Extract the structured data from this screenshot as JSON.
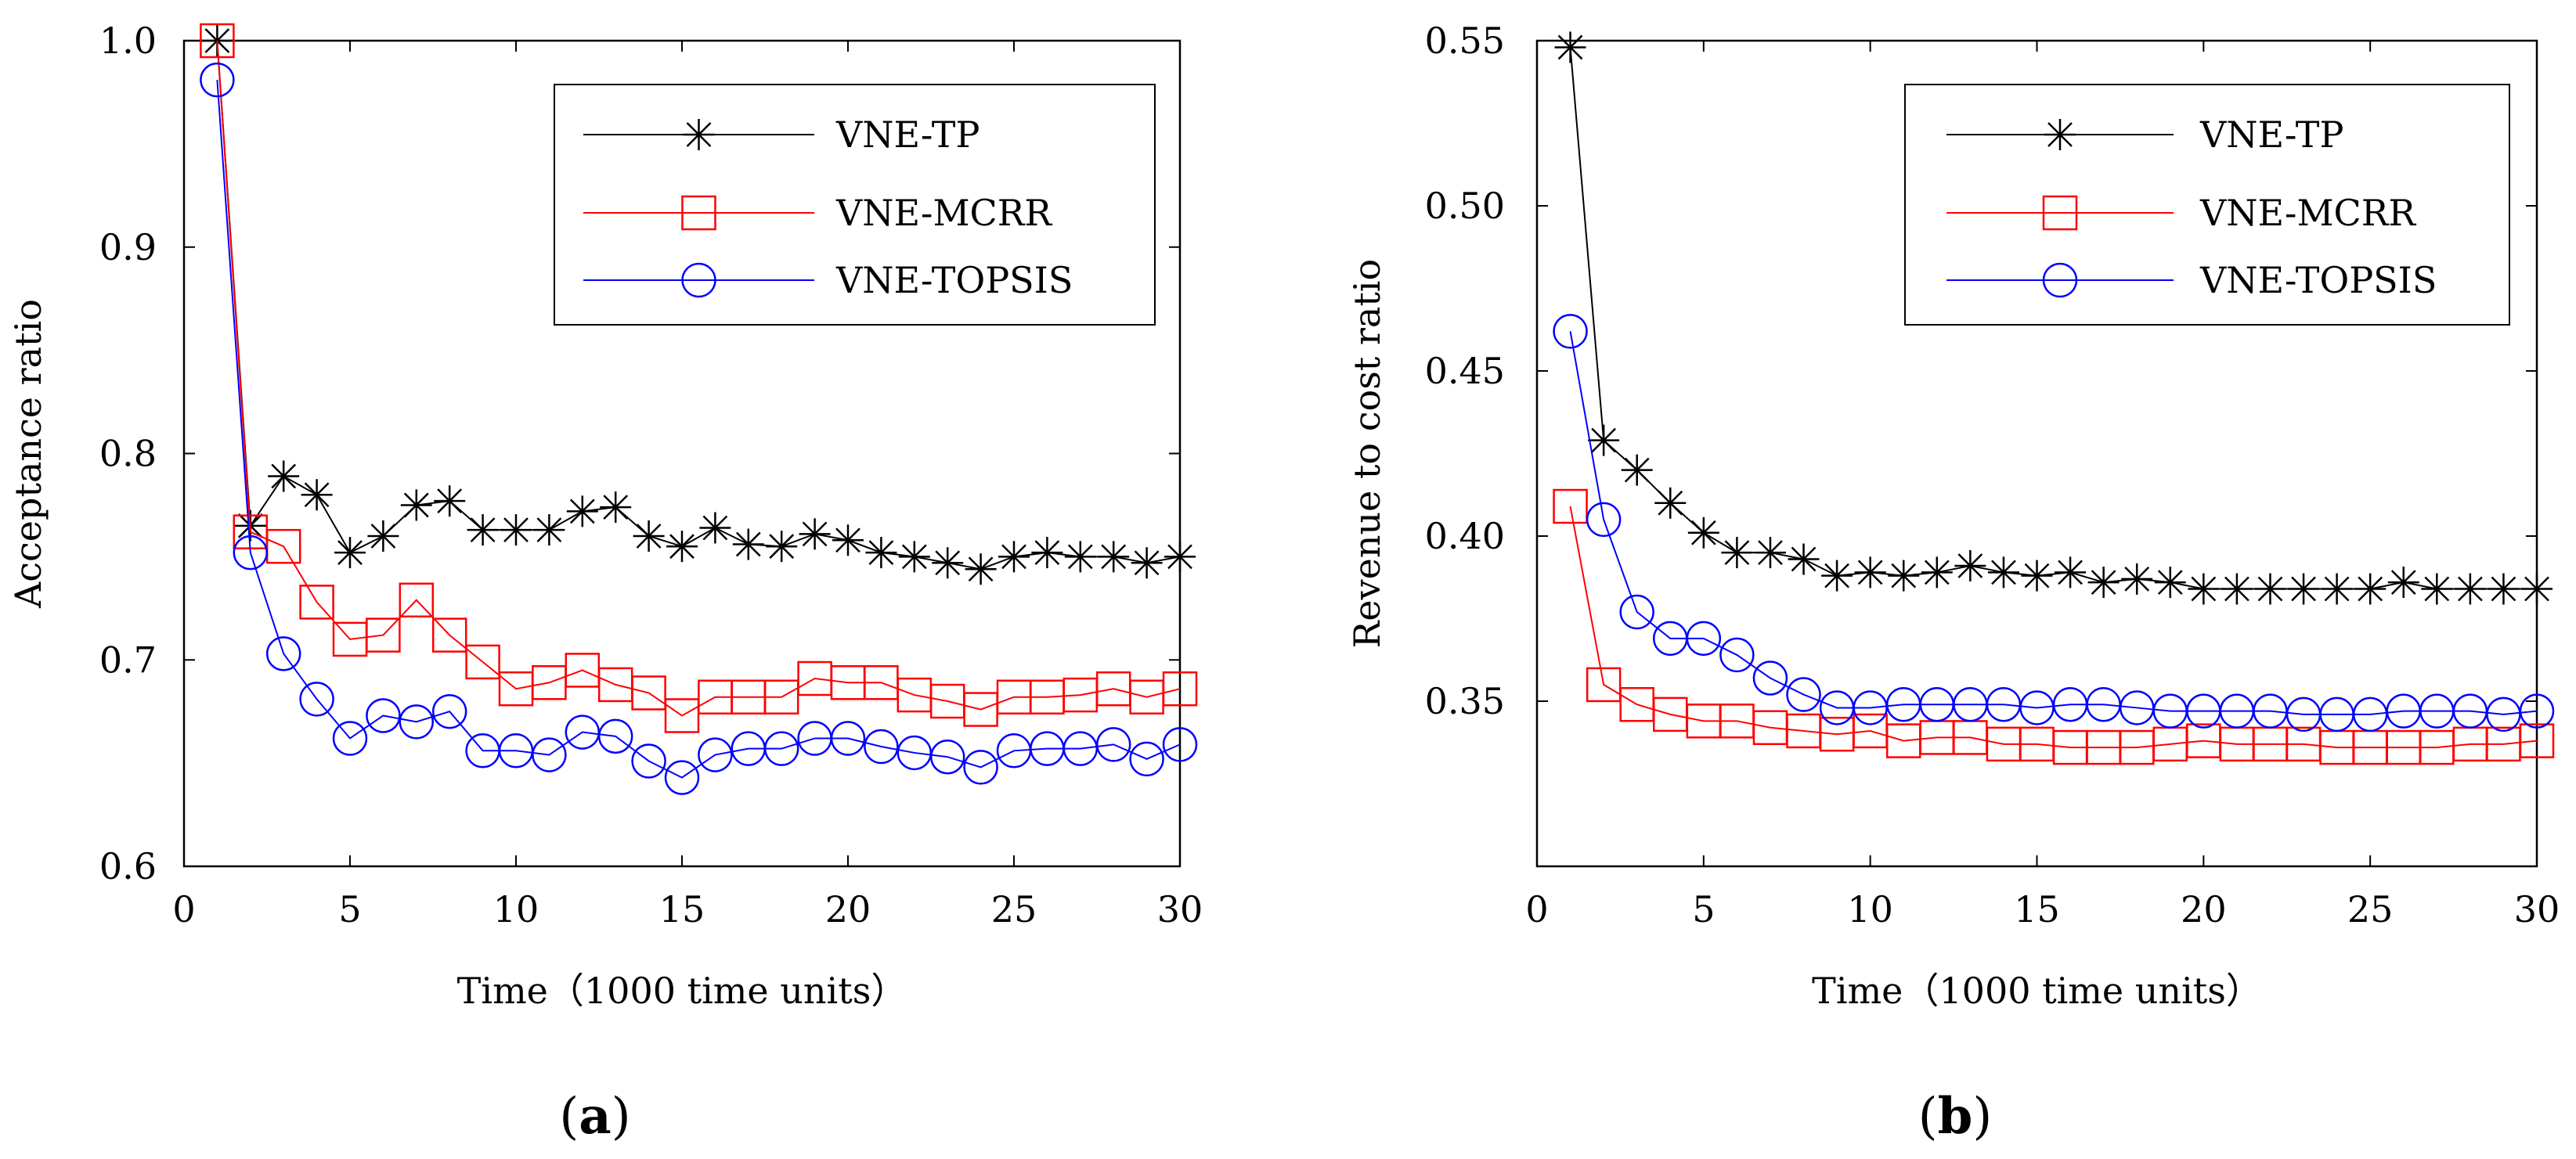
{
  "figure": {
    "panel_labels": [
      "(a)",
      "(b)"
    ],
    "panel_letters": [
      "a",
      "b"
    ],
    "colors": {
      "VNE-TP": "#000000",
      "VNE-MCRR": "#ff0000",
      "VNE-TOPSIS": "#0000ff"
    },
    "markers": {
      "VNE-TP": "star",
      "VNE-MCRR": "square",
      "VNE-TOPSIS": "circle"
    }
  },
  "chart_data": [
    {
      "type": "line",
      "panel": "(a)",
      "title": "",
      "xlabel": "Time（1000 time units）",
      "ylabel": "Acceptance ratio",
      "xlim": [
        0,
        30
      ],
      "ylim": [
        0.6,
        1.0
      ],
      "xticks": [
        0,
        5,
        10,
        15,
        20,
        25,
        30
      ],
      "yticks": [
        0.6,
        0.7,
        0.8,
        0.9,
        1.0
      ],
      "xtick_labels": [
        "0",
        "5",
        "10",
        "15",
        "20",
        "25",
        "30"
      ],
      "ytick_labels": [
        "0.6",
        "0.7",
        "0.8",
        "0.9",
        "1.0"
      ],
      "grid": false,
      "legend": "top-right",
      "x": [
        1,
        2,
        3,
        4,
        5,
        6,
        7,
        8,
        9,
        10,
        11,
        12,
        13,
        14,
        15,
        16,
        17,
        18,
        19,
        20,
        21,
        22,
        23,
        24,
        25,
        26,
        27,
        28,
        29,
        30
      ],
      "series": [
        {
          "name": "VNE-TP",
          "values": [
            1.0,
            0.765,
            0.789,
            0.78,
            0.752,
            0.76,
            0.775,
            0.777,
            0.763,
            0.763,
            0.763,
            0.772,
            0.774,
            0.76,
            0.755,
            0.764,
            0.756,
            0.755,
            0.761,
            0.758,
            0.752,
            0.75,
            0.747,
            0.744,
            0.75,
            0.752,
            0.75,
            0.75,
            0.747,
            0.75
          ]
        },
        {
          "name": "VNE-MCRR",
          "values": [
            1.0,
            0.762,
            0.755,
            0.728,
            0.71,
            0.712,
            0.729,
            0.712,
            0.699,
            0.686,
            0.689,
            0.695,
            0.688,
            0.684,
            0.673,
            0.682,
            0.682,
            0.682,
            0.691,
            0.689,
            0.689,
            0.683,
            0.68,
            0.676,
            0.682,
            0.682,
            0.683,
            0.686,
            0.682,
            0.686
          ]
        },
        {
          "name": "VNE-TOPSIS",
          "values": [
            0.981,
            0.752,
            0.703,
            0.681,
            0.662,
            0.673,
            0.67,
            0.675,
            0.656,
            0.656,
            0.654,
            0.665,
            0.663,
            0.651,
            0.643,
            0.654,
            0.657,
            0.657,
            0.662,
            0.662,
            0.658,
            0.655,
            0.653,
            0.648,
            0.656,
            0.657,
            0.657,
            0.659,
            0.652,
            0.659
          ]
        }
      ]
    },
    {
      "type": "line",
      "panel": "(b)",
      "title": "",
      "xlabel": "Time（1000 time units）",
      "ylabel": "Revenue to cost ratio",
      "xlim": [
        0,
        30
      ],
      "ylim": [
        0.3,
        0.55
      ],
      "xticks": [
        0,
        5,
        10,
        15,
        20,
        25,
        30
      ],
      "yticks": [
        0.35,
        0.4,
        0.45,
        0.5,
        0.55
      ],
      "xtick_labels": [
        "0",
        "5",
        "10",
        "15",
        "20",
        "25",
        "30"
      ],
      "ytick_labels": [
        "0.35",
        "0.40",
        "0.45",
        "0.50",
        "0.55"
      ],
      "grid": false,
      "legend": "top-right",
      "x": [
        1,
        2,
        3,
        4,
        5,
        6,
        7,
        8,
        9,
        10,
        11,
        12,
        13,
        14,
        15,
        16,
        17,
        18,
        19,
        20,
        21,
        22,
        23,
        24,
        25,
        26,
        27,
        28,
        29,
        30
      ],
      "series": [
        {
          "name": "VNE-TP",
          "values": [
            0.548,
            0.429,
            0.42,
            0.41,
            0.401,
            0.395,
            0.395,
            0.393,
            0.388,
            0.389,
            0.388,
            0.389,
            0.391,
            0.389,
            0.388,
            0.389,
            0.386,
            0.387,
            0.386,
            0.384,
            0.384,
            0.384,
            0.384,
            0.384,
            0.384,
            0.386,
            0.384,
            0.384,
            0.384,
            0.384
          ]
        },
        {
          "name": "VNE-MCRR",
          "values": [
            0.409,
            0.355,
            0.349,
            0.346,
            0.344,
            0.344,
            0.342,
            0.341,
            0.34,
            0.341,
            0.338,
            0.339,
            0.339,
            0.337,
            0.337,
            0.336,
            0.336,
            0.336,
            0.337,
            0.338,
            0.337,
            0.337,
            0.337,
            0.336,
            0.336,
            0.336,
            0.336,
            0.337,
            0.337,
            0.338
          ]
        },
        {
          "name": "VNE-TOPSIS",
          "values": [
            0.462,
            0.405,
            0.377,
            0.369,
            0.369,
            0.364,
            0.357,
            0.352,
            0.348,
            0.348,
            0.349,
            0.349,
            0.349,
            0.349,
            0.348,
            0.349,
            0.349,
            0.348,
            0.347,
            0.347,
            0.347,
            0.347,
            0.346,
            0.346,
            0.346,
            0.347,
            0.347,
            0.347,
            0.346,
            0.347
          ]
        }
      ]
    }
  ]
}
